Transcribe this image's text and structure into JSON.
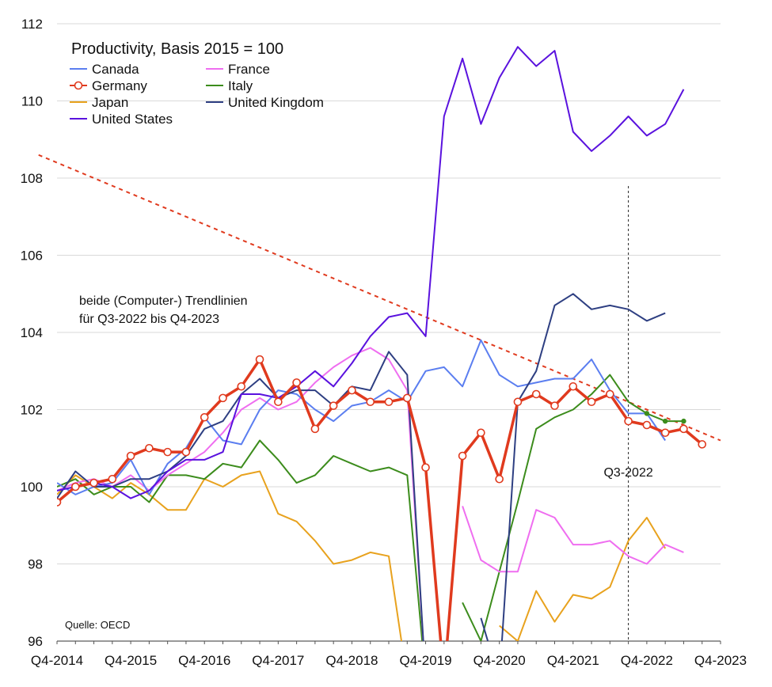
{
  "chart_data": {
    "type": "line",
    "title": "Productivity, Basis 2015 = 100",
    "ylim": [
      96,
      112
    ],
    "y_ticks": [
      96,
      98,
      100,
      102,
      104,
      106,
      108,
      110,
      112
    ],
    "x_tick_labels": [
      "Q4-2014",
      "Q4-2015",
      "Q4-2016",
      "Q4-2017",
      "Q4-2018",
      "Q4-2019",
      "Q4-2020",
      "Q4-2021",
      "Q4-2022",
      "Q4-2023"
    ],
    "quarters": [
      "Q4-2014",
      "Q1-2015",
      "Q2-2015",
      "Q3-2015",
      "Q4-2015",
      "Q1-2016",
      "Q2-2016",
      "Q3-2016",
      "Q4-2016",
      "Q1-2017",
      "Q2-2017",
      "Q3-2017",
      "Q4-2017",
      "Q1-2018",
      "Q2-2018",
      "Q3-2018",
      "Q4-2018",
      "Q1-2019",
      "Q2-2019",
      "Q3-2019",
      "Q4-2019",
      "Q1-2020",
      "Q2-2020",
      "Q3-2020",
      "Q4-2020",
      "Q1-2021",
      "Q2-2021",
      "Q3-2021",
      "Q4-2021",
      "Q1-2022",
      "Q2-2022",
      "Q3-2022",
      "Q4-2022",
      "Q1-2023",
      "Q2-2023",
      "Q3-2023",
      "Q4-2023"
    ],
    "grid": true,
    "legend_position": "top-left",
    "series": [
      {
        "name": "Canada",
        "color": "#5b7ef0",
        "values": [
          100.1,
          99.8,
          100.0,
          100.1,
          100.7,
          99.8,
          100.6,
          101.0,
          101.8,
          101.2,
          101.1,
          102.0,
          102.5,
          102.4,
          102.0,
          101.7,
          102.1,
          102.2,
          102.5,
          102.2,
          103.0,
          103.1,
          102.6,
          103.8,
          102.9,
          102.6,
          102.7,
          102.8,
          102.8,
          103.3,
          102.5,
          101.9,
          101.9,
          101.2,
          null,
          null,
          null
        ]
      },
      {
        "name": "Germany",
        "color": "#e03a1e",
        "markers": true,
        "values": [
          99.6,
          100.0,
          100.1,
          100.2,
          100.8,
          101.0,
          100.9,
          100.9,
          101.8,
          102.3,
          102.6,
          103.3,
          102.2,
          102.7,
          101.5,
          102.1,
          102.5,
          102.2,
          102.2,
          102.3,
          100.5,
          95.0,
          100.8,
          101.4,
          100.2,
          102.2,
          102.4,
          102.1,
          102.6,
          102.2,
          102.4,
          101.7,
          101.6,
          101.4,
          101.5,
          101.1,
          null
        ]
      },
      {
        "name": "Japan",
        "color": "#e8a21e",
        "values": [
          99.8,
          100.3,
          100.0,
          99.7,
          100.1,
          99.8,
          99.4,
          99.4,
          100.2,
          100.0,
          100.3,
          100.4,
          99.3,
          99.1,
          98.6,
          98.0,
          98.1,
          98.3,
          98.2,
          95.0,
          null,
          null,
          null,
          null,
          96.4,
          96.0,
          97.3,
          96.5,
          97.2,
          97.1,
          97.4,
          98.6,
          99.2,
          98.4,
          null,
          null,
          null
        ]
      },
      {
        "name": "United States",
        "color": "#5a12de",
        "values": [
          99.9,
          100.0,
          100.1,
          100.0,
          99.7,
          99.9,
          100.4,
          100.7,
          100.7,
          100.9,
          102.4,
          102.4,
          102.3,
          102.6,
          103.0,
          102.6,
          103.2,
          103.9,
          104.4,
          104.5,
          103.9,
          109.6,
          111.1,
          109.4,
          110.6,
          111.4,
          110.9,
          111.3,
          109.2,
          108.7,
          109.1,
          109.6,
          109.1,
          109.4,
          110.3,
          null,
          null
        ]
      },
      {
        "name": "France",
        "color": "#ef6ef0",
        "values": [
          99.9,
          100.1,
          100.2,
          100.0,
          100.3,
          99.9,
          100.3,
          100.6,
          100.9,
          101.4,
          102.0,
          102.3,
          102.0,
          102.2,
          102.7,
          103.1,
          103.4,
          103.6,
          103.3,
          102.5,
          95.0,
          null,
          99.5,
          98.1,
          97.8,
          97.8,
          99.4,
          99.2,
          98.5,
          98.5,
          98.6,
          98.2,
          98.0,
          98.5,
          98.3,
          null,
          null
        ]
      },
      {
        "name": "Italy",
        "color": "#3c8c1c",
        "values": [
          100.0,
          100.2,
          99.8,
          100.0,
          100.0,
          99.6,
          100.3,
          100.3,
          100.2,
          100.6,
          100.5,
          101.2,
          100.7,
          100.1,
          100.3,
          100.8,
          100.6,
          100.4,
          100.5,
          100.3,
          95.0,
          null,
          97.0,
          96.0,
          97.8,
          99.6,
          101.5,
          101.8,
          102.0,
          102.4,
          102.9,
          102.2,
          101.9,
          101.7,
          101.7,
          null,
          null
        ]
      },
      {
        "name": "United Kingdom",
        "color": "#2e3f82",
        "values": [
          99.7,
          100.4,
          100.0,
          100.0,
          100.2,
          100.2,
          100.4,
          100.8,
          101.5,
          101.7,
          102.4,
          102.8,
          102.3,
          102.5,
          102.5,
          102.1,
          102.6,
          102.5,
          103.5,
          102.9,
          95.0,
          null,
          null,
          96.6,
          95.0,
          102.2,
          103.0,
          104.7,
          105.0,
          104.6,
          104.7,
          104.6,
          104.3,
          104.5,
          null,
          null,
          null
        ]
      }
    ],
    "trendline": {
      "name": "Trendlinie",
      "color": "#e03a1e",
      "from": [
        -1,
        108.6
      ],
      "to": [
        36,
        101.2
      ]
    },
    "vertical_marker": {
      "quarter": "Q3-2022",
      "label": "Q3-2022"
    },
    "annotations": {
      "trend_note_line1": "beide (Computer-) Trendlinien",
      "trend_note_line2": "für Q3-2022 bis Q4-2023",
      "source": "Quelle: OECD"
    }
  }
}
